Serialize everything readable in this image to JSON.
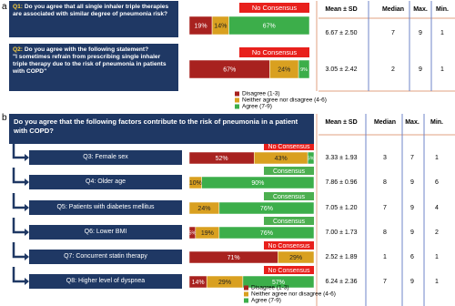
{
  "panels": [
    {
      "letter": "a",
      "xlim": [
        0,
        100
      ],
      "columns": [
        "Mean ± SD",
        "Median",
        "Max.",
        "Min."
      ],
      "series": [
        {
          "name": "Disagree (1-3)",
          "color": "#a8221f"
        },
        {
          "name": "Neither agree nor disagree (4-6)",
          "color": "#d9a020"
        },
        {
          "name": "Agree (7-9)",
          "color": "#3cae4a"
        }
      ],
      "questions": [
        {
          "label": "Q1:",
          "text": "Do you agree that all single inhaler triple therapies are associated with similar degree of pneumonia risk?",
          "values": [
            19,
            14,
            67
          ],
          "value_labels": [
            "19%",
            "14%",
            "67%"
          ],
          "consensus": "No Consensus",
          "consensus_color": "#e8201c",
          "mean_sd": "6.67 ± 2.50",
          "median": 7,
          "max": 9,
          "min": 1
        },
        {
          "label": "Q2:",
          "text": "Do you agree with the following statement?",
          "quote": "\"I sometimes refrain from prescribing single inhaler triple therapy due to the risk of pneumonia in patients with COPD\"",
          "values": [
            67,
            24,
            9
          ],
          "value_labels": [
            "67%",
            "24%",
            "9%"
          ],
          "consensus": "No Consensus",
          "consensus_color": "#e8201c",
          "mean_sd": "3.05 ± 2.42",
          "median": 2,
          "max": 9,
          "min": 1
        }
      ]
    },
    {
      "letter": "b",
      "xlim": [
        0,
        100
      ],
      "prompt": "Do you agree that the following factors contribute to the risk of pneumonia in a patient with COPD?",
      "columns": [
        "Mean ± SD",
        "Median",
        "Max.",
        "Min."
      ],
      "series": [
        {
          "name": "Disagree (1-3)",
          "color": "#a8221f"
        },
        {
          "name": "Neither agree nor disagree (4-6)",
          "color": "#d9a020"
        },
        {
          "name": "Agree (7-9)",
          "color": "#3cae4a"
        }
      ],
      "questions": [
        {
          "label": "Q3:",
          "text": "Female sex",
          "values": [
            52,
            43,
            5
          ],
          "value_labels": [
            "52%",
            "43%",
            "5%"
          ],
          "consensus": "No Consensus",
          "consensus_color": "#e8201c",
          "mean_sd": "3.33 ± 1.93",
          "median": 3,
          "max": 7,
          "min": 1
        },
        {
          "label": "Q4:",
          "text": "Older age",
          "values": [
            0,
            10,
            90
          ],
          "value_labels": [
            null,
            "10%",
            "90%"
          ],
          "consensus": "Consensus",
          "consensus_color": "#4caf50",
          "mean_sd": "7.86 ± 0.96",
          "median": 8,
          "max": 9,
          "min": 6
        },
        {
          "label": "Q5:",
          "text": "Patients with diabetes mellitus",
          "values": [
            0,
            24,
            76
          ],
          "value_labels": [
            null,
            "24%",
            "76%"
          ],
          "consensus": "Consensus",
          "consensus_color": "#4caf50",
          "mean_sd": "7.05 ± 1.20",
          "median": 7,
          "max": 9,
          "min": 4
        },
        {
          "label": "Q6:",
          "text": "Lower BMI",
          "values": [
            5,
            19,
            76
          ],
          "value_labels": [
            "5%",
            "19%",
            "76%"
          ],
          "consensus": "Consensus",
          "consensus_color": "#4caf50",
          "mean_sd": "7.00 ± 1.73",
          "median": 8,
          "max": 9,
          "min": 2
        },
        {
          "label": "Q7:",
          "text": "Concurrent statin therapy",
          "values": [
            71,
            29,
            0
          ],
          "value_labels": [
            "71%",
            "29%",
            null
          ],
          "consensus": "No Consensus",
          "consensus_color": "#e8201c",
          "mean_sd": "2.52 ± 1.89",
          "median": 1,
          "max": 6,
          "min": 1
        },
        {
          "label": "Q8:",
          "text": "Higher level of dyspnea",
          "values": [
            14,
            29,
            57
          ],
          "value_labels": [
            "14%",
            "29%",
            "57%"
          ],
          "consensus": "No Consensus",
          "consensus_color": "#e8201c",
          "mean_sd": "6.24 ± 2.36",
          "median": 7,
          "max": 9,
          "min": 1
        }
      ]
    }
  ]
}
